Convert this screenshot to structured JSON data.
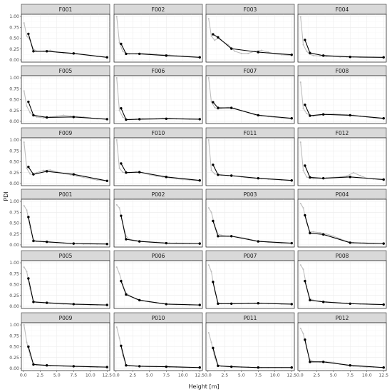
{
  "chart_data": {
    "type": "line",
    "xlabel": "Height [m]",
    "ylabel": "PDI",
    "xlim": [
      -0.3,
      12.9
    ],
    "ylim": [
      -0.05,
      1.05
    ],
    "x_ticks": [
      0.0,
      2.5,
      5.0,
      7.5,
      10.0,
      12.5
    ],
    "x_tick_labels": [
      "0.0",
      "2.5",
      "5.0",
      "7.5",
      "10.0",
      "12.5"
    ],
    "y_ticks": [
      0.0,
      0.25,
      0.5,
      0.75,
      1.0
    ],
    "y_tick_labels": [
      "0.00",
      "0.25",
      "0.50",
      "0.75",
      "1.00"
    ],
    "grid": true,
    "layout": {
      "rows": 6,
      "cols": 4
    },
    "colors": {
      "main": "#000000",
      "background_series": "#bdbdbd"
    },
    "main_x": [
      0.75,
      1.5,
      3.5,
      7.5,
      12.5
    ],
    "panels": [
      {
        "title": "F001",
        "main": [
          0.6,
          0.2,
          0.2,
          0.15,
          0.06
        ],
        "gray_x": [
          0.1,
          0.5,
          1.0,
          1.5,
          2.0,
          3.0,
          4.0,
          5.0,
          6.0,
          7.0,
          8.0,
          9.0,
          10.0,
          11.0,
          12.5
        ],
        "gray": [
          0.85,
          0.55,
          0.45,
          0.25,
          0.2,
          0.2,
          0.22,
          0.18,
          0.16,
          0.15,
          0.14,
          0.12,
          0.1,
          0.08,
          0.06
        ]
      },
      {
        "title": "F002",
        "main": [
          0.37,
          0.14,
          0.14,
          0.1,
          0.06
        ],
        "gray_x": [
          0.1,
          0.5,
          1.0,
          1.5,
          2.0,
          3.0,
          4.0,
          5.0,
          6.0,
          7.0,
          8.0,
          9.0,
          10.0,
          11.0,
          12.5
        ],
        "gray": [
          1.0,
          0.4,
          0.2,
          0.15,
          0.14,
          0.14,
          0.15,
          0.14,
          0.13,
          0.12,
          0.11,
          0.1,
          0.09,
          0.08,
          0.06
        ]
      },
      {
        "title": "F003",
        "main": [
          0.59,
          0.52,
          0.26,
          0.18,
          0.12
        ],
        "gray_x": [
          0.1,
          0.5,
          1.0,
          1.5,
          2.0,
          3.0,
          4.0,
          5.0,
          6.0,
          7.0,
          8.0,
          9.0,
          10.0,
          11.0,
          12.5
        ],
        "gray": [
          0.95,
          0.55,
          0.45,
          0.5,
          0.45,
          0.35,
          0.2,
          0.15,
          0.15,
          0.2,
          0.22,
          0.18,
          0.14,
          0.12,
          0.1
        ]
      },
      {
        "title": "F004",
        "main": [
          0.46,
          0.16,
          0.1,
          0.07,
          0.06
        ],
        "gray_x": [
          0.1,
          0.5,
          1.0,
          1.5,
          2.0,
          3.0,
          4.0,
          5.0,
          6.0,
          7.0,
          8.0,
          9.0,
          10.0,
          11.0,
          12.5
        ],
        "gray": [
          0.99,
          0.35,
          0.2,
          0.13,
          0.1,
          0.09,
          0.08,
          0.08,
          0.07,
          0.07,
          0.07,
          0.06,
          0.06,
          0.06,
          0.05
        ]
      },
      {
        "title": "F005",
        "main": [
          0.45,
          0.14,
          0.09,
          0.1,
          0.05
        ],
        "gray_x": [
          0.1,
          0.5,
          1.0,
          1.5,
          2.0,
          3.0,
          4.0,
          5.0,
          6.0,
          7.0,
          8.0,
          9.0,
          10.0,
          11.0,
          12.5
        ],
        "gray": [
          0.7,
          0.35,
          0.2,
          0.13,
          0.1,
          0.08,
          0.1,
          0.12,
          0.14,
          0.12,
          0.11,
          0.1,
          0.08,
          0.06,
          0.05
        ]
      },
      {
        "title": "F006",
        "main": [
          0.3,
          0.04,
          0.05,
          0.06,
          0.05
        ],
        "gray_x": [
          0.1,
          0.5,
          1.0,
          1.5,
          2.0,
          3.0,
          4.0,
          5.0,
          6.0,
          7.0,
          8.0,
          9.0,
          10.0,
          11.0,
          12.5
        ],
        "gray": [
          1.0,
          0.25,
          0.1,
          0.05,
          0.04,
          0.05,
          0.06,
          0.06,
          0.06,
          0.07,
          0.07,
          0.06,
          0.06,
          0.05,
          0.05
        ]
      },
      {
        "title": "F007",
        "main": [
          0.44,
          0.31,
          0.31,
          0.14,
          0.07
        ],
        "gray_x": [
          0.1,
          0.5,
          1.0,
          1.5,
          2.0,
          3.0,
          4.0,
          5.0,
          6.0,
          7.0,
          8.0,
          9.0,
          10.0,
          11.0,
          12.5
        ],
        "gray": [
          1.0,
          0.45,
          0.32,
          0.28,
          0.3,
          0.32,
          0.3,
          0.25,
          0.2,
          0.15,
          0.13,
          0.11,
          0.09,
          0.08,
          0.06
        ]
      },
      {
        "title": "F008",
        "main": [
          0.38,
          0.13,
          0.16,
          0.14,
          0.07
        ],
        "gray_x": [
          0.1,
          0.5,
          1.0,
          1.5,
          2.0,
          3.0,
          4.0,
          5.0,
          6.0,
          7.0,
          8.0,
          9.0,
          10.0,
          11.0,
          12.5
        ],
        "gray": [
          0.9,
          0.3,
          0.18,
          0.14,
          0.12,
          0.14,
          0.16,
          0.17,
          0.16,
          0.15,
          0.14,
          0.12,
          0.1,
          0.08,
          0.06
        ]
      },
      {
        "title": "F009",
        "main": [
          0.38,
          0.21,
          0.28,
          0.21,
          0.06
        ],
        "gray_x": [
          0.1,
          0.5,
          1.0,
          1.5,
          2.0,
          3.0,
          4.0,
          5.0,
          6.0,
          7.0,
          8.0,
          9.0,
          10.0,
          11.0,
          12.5
        ],
        "gray": [
          0.95,
          0.35,
          0.22,
          0.2,
          0.25,
          0.3,
          0.31,
          0.27,
          0.23,
          0.2,
          0.17,
          0.14,
          0.11,
          0.08,
          0.06
        ]
      },
      {
        "title": "F010",
        "main": [
          0.46,
          0.25,
          0.26,
          0.15,
          0.07
        ],
        "gray_x": [
          0.1,
          0.5,
          1.0,
          1.5,
          2.0,
          3.0,
          4.0,
          5.0,
          6.0,
          7.0,
          8.0,
          9.0,
          10.0,
          11.0,
          12.5
        ],
        "gray": [
          1.0,
          0.35,
          0.26,
          0.24,
          0.25,
          0.27,
          0.25,
          0.2,
          0.17,
          0.15,
          0.13,
          0.11,
          0.09,
          0.08,
          0.06
        ]
      },
      {
        "title": "F011",
        "main": [
          0.43,
          0.2,
          0.18,
          0.12,
          0.07
        ],
        "gray_x": [
          0.1,
          0.5,
          1.0,
          1.5,
          2.0,
          3.0,
          4.0,
          5.0,
          6.0,
          7.0,
          8.0,
          9.0,
          10.0,
          11.0,
          12.5
        ],
        "gray": [
          1.0,
          0.3,
          0.22,
          0.2,
          0.19,
          0.18,
          0.17,
          0.15,
          0.13,
          0.12,
          0.11,
          0.1,
          0.09,
          0.08,
          0.07
        ]
      },
      {
        "title": "F012",
        "main": [
          0.41,
          0.14,
          0.12,
          0.15,
          0.09
        ],
        "gray_x": [
          0.1,
          0.5,
          1.0,
          1.5,
          2.0,
          3.0,
          4.0,
          5.0,
          6.0,
          7.0,
          8.0,
          9.0,
          10.0,
          11.0,
          12.5
        ],
        "gray": [
          0.95,
          0.3,
          0.15,
          0.12,
          0.11,
          0.12,
          0.13,
          0.14,
          0.15,
          0.17,
          0.25,
          0.18,
          0.12,
          0.1,
          0.08
        ]
      },
      {
        "title": "P001",
        "main": [
          0.64,
          0.09,
          0.07,
          0.03,
          0.02
        ],
        "gray_x": [
          0.1,
          0.5,
          1.0,
          1.5,
          2.0,
          3.0,
          4.0,
          5.0,
          6.0,
          7.0,
          8.0,
          9.0,
          10.0,
          11.0,
          12.5
        ],
        "gray": [
          0.9,
          0.8,
          0.4,
          0.12,
          0.08,
          0.07,
          0.06,
          0.05,
          0.04,
          0.03,
          0.03,
          0.02,
          0.02,
          0.02,
          0.02
        ]
      },
      {
        "title": "P002",
        "main": [
          0.67,
          0.13,
          0.08,
          0.04,
          0.03
        ],
        "gray_x": [
          0.1,
          0.5,
          1.0,
          1.5,
          2.0,
          3.0,
          4.0,
          5.0,
          6.0,
          7.0,
          8.0,
          9.0,
          10.0,
          11.0,
          12.5
        ],
        "gray": [
          0.92,
          0.85,
          0.5,
          0.2,
          0.13,
          0.1,
          0.08,
          0.07,
          0.06,
          0.05,
          0.04,
          0.04,
          0.03,
          0.03,
          0.03
        ]
      },
      {
        "title": "P003",
        "main": [
          0.55,
          0.2,
          0.2,
          0.08,
          0.04
        ],
        "gray_x": [
          0.1,
          0.5,
          1.0,
          1.5,
          2.0,
          3.0,
          4.0,
          5.0,
          6.0,
          7.0,
          8.0,
          9.0,
          10.0,
          11.0,
          12.5
        ],
        "gray": [
          0.85,
          0.75,
          0.45,
          0.25,
          0.22,
          0.2,
          0.19,
          0.17,
          0.14,
          0.1,
          0.08,
          0.06,
          0.05,
          0.04,
          0.04
        ]
      },
      {
        "title": "P004",
        "main": [
          0.68,
          0.27,
          0.24,
          0.05,
          0.03
        ],
        "gray_x": [
          0.1,
          0.5,
          1.0,
          1.5,
          2.0,
          3.0,
          4.0,
          5.0,
          6.0,
          7.0,
          8.0,
          9.0,
          10.0,
          11.0,
          12.5
        ],
        "gray": [
          0.95,
          0.85,
          0.5,
          0.3,
          0.3,
          0.28,
          0.25,
          0.2,
          0.14,
          0.08,
          0.05,
          0.04,
          0.03,
          0.03,
          0.03
        ]
      },
      {
        "title": "P005",
        "main": [
          0.64,
          0.1,
          0.08,
          0.05,
          0.03
        ],
        "gray_x": [
          0.1,
          0.5,
          1.0,
          1.5,
          2.0,
          3.0,
          4.0,
          5.0,
          6.0,
          7.0,
          8.0,
          9.0,
          10.0,
          11.0,
          12.5
        ],
        "gray": [
          0.9,
          0.8,
          0.4,
          0.12,
          0.09,
          0.08,
          0.07,
          0.06,
          0.05,
          0.05,
          0.04,
          0.04,
          0.03,
          0.03,
          0.03
        ]
      },
      {
        "title": "P006",
        "main": [
          0.58,
          0.27,
          0.14,
          0.05,
          0.03
        ],
        "gray_x": [
          0.1,
          0.5,
          1.0,
          1.5,
          2.0,
          3.0,
          4.0,
          5.0,
          6.0,
          7.0,
          8.0,
          9.0,
          10.0,
          11.0,
          12.5
        ],
        "gray": [
          0.9,
          0.75,
          0.5,
          0.3,
          0.25,
          0.17,
          0.13,
          0.1,
          0.08,
          0.06,
          0.05,
          0.04,
          0.04,
          0.03,
          0.03
        ]
      },
      {
        "title": "P007",
        "main": [
          0.56,
          0.06,
          0.06,
          0.07,
          0.05
        ],
        "gray_x": [
          0.1,
          0.5,
          1.0,
          1.5,
          2.0,
          3.0,
          4.0,
          5.0,
          6.0,
          7.0,
          8.0,
          9.0,
          10.0,
          11.0,
          12.5
        ],
        "gray": [
          0.95,
          0.8,
          0.35,
          0.08,
          0.06,
          0.06,
          0.06,
          0.06,
          0.07,
          0.07,
          0.07,
          0.06,
          0.06,
          0.05,
          0.05
        ]
      },
      {
        "title": "P008",
        "main": [
          0.58,
          0.14,
          0.1,
          0.06,
          0.04
        ],
        "gray_x": [
          0.1,
          0.5,
          1.0,
          1.5,
          2.0,
          3.0,
          4.0,
          5.0,
          6.0,
          7.0,
          8.0,
          9.0,
          10.0,
          11.0,
          12.5
        ],
        "gray": [
          0.95,
          0.85,
          0.45,
          0.18,
          0.14,
          0.12,
          0.1,
          0.09,
          0.08,
          0.07,
          0.06,
          0.05,
          0.05,
          0.04,
          0.04
        ]
      },
      {
        "title": "P009",
        "main": [
          0.5,
          0.09,
          0.07,
          0.05,
          0.03
        ],
        "gray_x": [
          0.1,
          0.5,
          1.0,
          1.5,
          2.0,
          3.0,
          4.0,
          5.0,
          6.0,
          7.0,
          8.0,
          9.0,
          10.0,
          11.0,
          12.5
        ],
        "gray": [
          1.0,
          0.6,
          0.3,
          0.1,
          0.08,
          0.07,
          0.06,
          0.06,
          0.05,
          0.05,
          0.04,
          0.04,
          0.03,
          0.03,
          0.03
        ]
      },
      {
        "title": "P010",
        "main": [
          0.52,
          0.07,
          0.05,
          0.04,
          0.02
        ],
        "gray_x": [
          0.1,
          0.5,
          1.0,
          1.5,
          2.0,
          3.0,
          4.0,
          5.0,
          6.0,
          7.0,
          8.0,
          9.0,
          10.0,
          11.0,
          12.5
        ],
        "gray": [
          0.95,
          0.7,
          0.3,
          0.08,
          0.06,
          0.05,
          0.05,
          0.04,
          0.04,
          0.04,
          0.03,
          0.03,
          0.02,
          0.02,
          0.02
        ]
      },
      {
        "title": "P011",
        "main": [
          0.47,
          0.06,
          0.04,
          0.02,
          0.02
        ],
        "gray_x": [
          0.1,
          0.5,
          1.0,
          1.5,
          2.0,
          3.0,
          4.0,
          5.0,
          6.0,
          7.0,
          8.0,
          9.0,
          10.0,
          11.0,
          12.5
        ],
        "gray": [
          0.82,
          0.6,
          0.25,
          0.07,
          0.05,
          0.04,
          0.04,
          0.03,
          0.03,
          0.02,
          0.02,
          0.02,
          0.02,
          0.02,
          0.02
        ]
      },
      {
        "title": "P012",
        "main": [
          0.66,
          0.15,
          0.15,
          0.07,
          0.02
        ],
        "gray_x": [
          0.1,
          0.5,
          1.0,
          1.5,
          2.0,
          3.0,
          4.0,
          5.0,
          6.0,
          7.0,
          8.0,
          9.0,
          10.0,
          11.0,
          12.5
        ],
        "gray": [
          0.92,
          0.8,
          0.45,
          0.2,
          0.16,
          0.15,
          0.15,
          0.14,
          0.1,
          0.07,
          0.05,
          0.04,
          0.03,
          0.03,
          0.02
        ]
      }
    ]
  }
}
